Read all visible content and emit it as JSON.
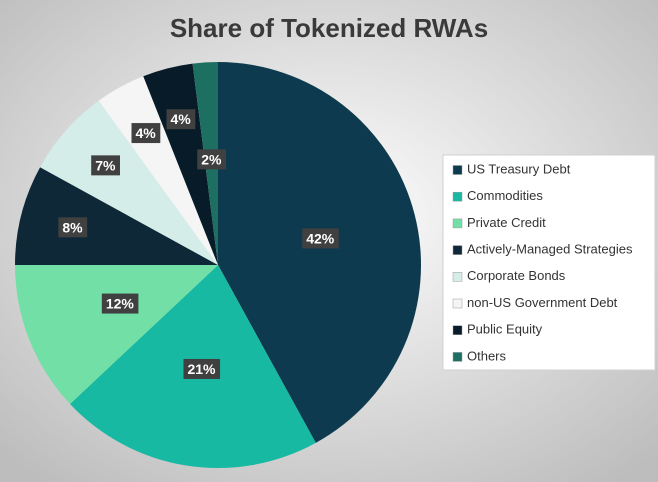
{
  "chart_data": {
    "type": "pie",
    "title": "Share of Tokenized RWAs",
    "categories": [
      "US Treasury Debt",
      "Commodities",
      "Private Credit",
      "Actively-Managed Strategies",
      "Corporate Bonds",
      "non-US Government Debt",
      "Public Equity",
      "Others"
    ],
    "values": [
      42,
      21,
      12,
      8,
      7,
      4,
      4,
      2
    ],
    "value_labels": [
      "42%",
      "21%",
      "12%",
      "8%",
      "7%",
      "4%",
      "4%",
      "2%"
    ],
    "colors": [
      "#0d3a4e",
      "#17b9a2",
      "#72dfa7",
      "#0e2838",
      "#d4ede9",
      "#f5f5f5",
      "#071b28",
      "#1d6f61"
    ],
    "legend": "right"
  }
}
